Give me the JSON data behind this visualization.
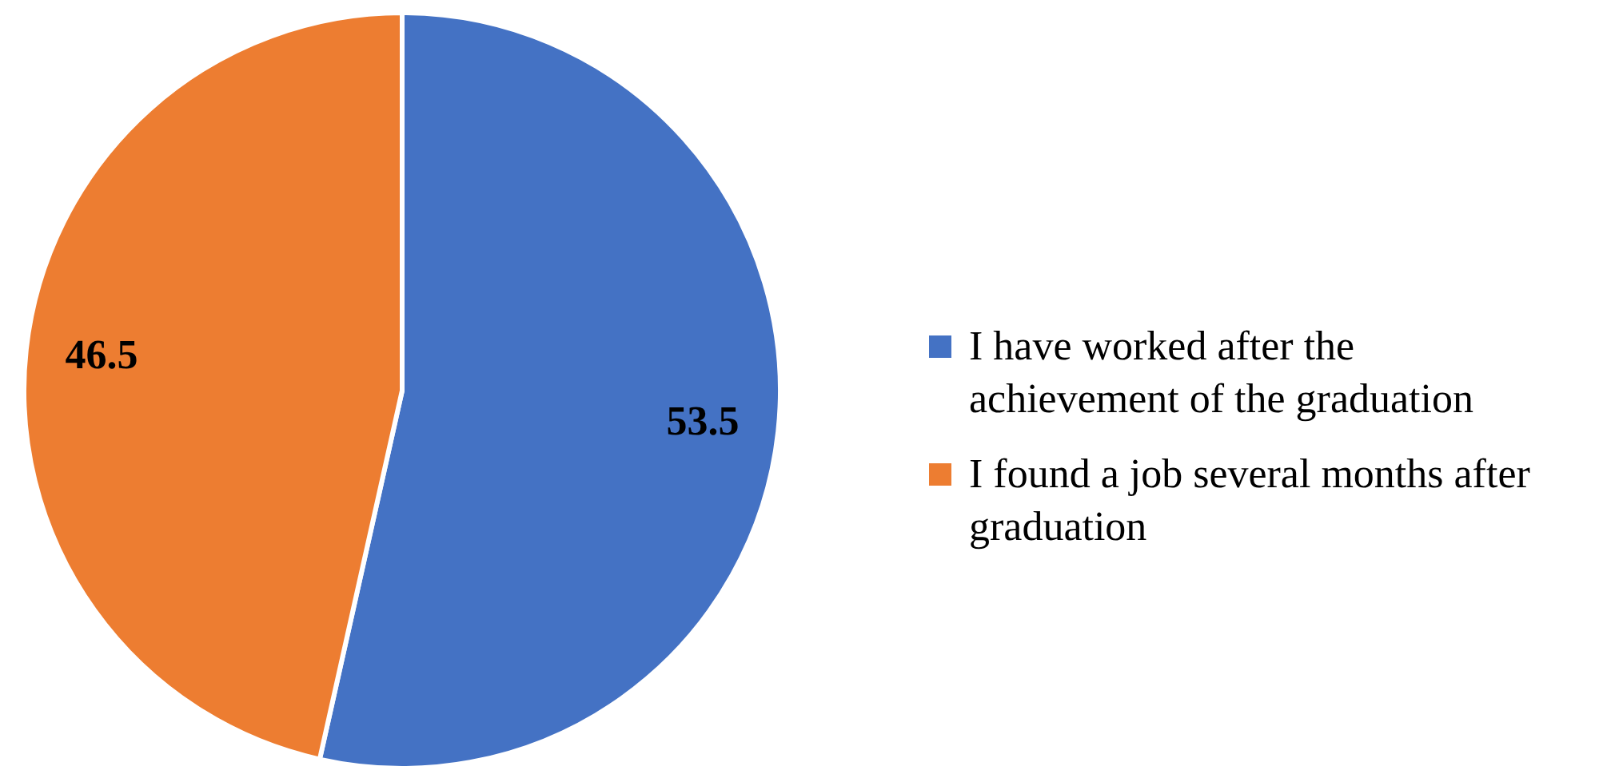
{
  "chart_data": {
    "type": "pie",
    "categories": [
      "I have worked after the achievement of the graduation",
      "I found a job several months after graduation"
    ],
    "values": [
      53.5,
      46.5
    ],
    "colors": [
      "#4472c4",
      "#ed7d31"
    ],
    "data_labels": true,
    "legend": "right"
  }
}
